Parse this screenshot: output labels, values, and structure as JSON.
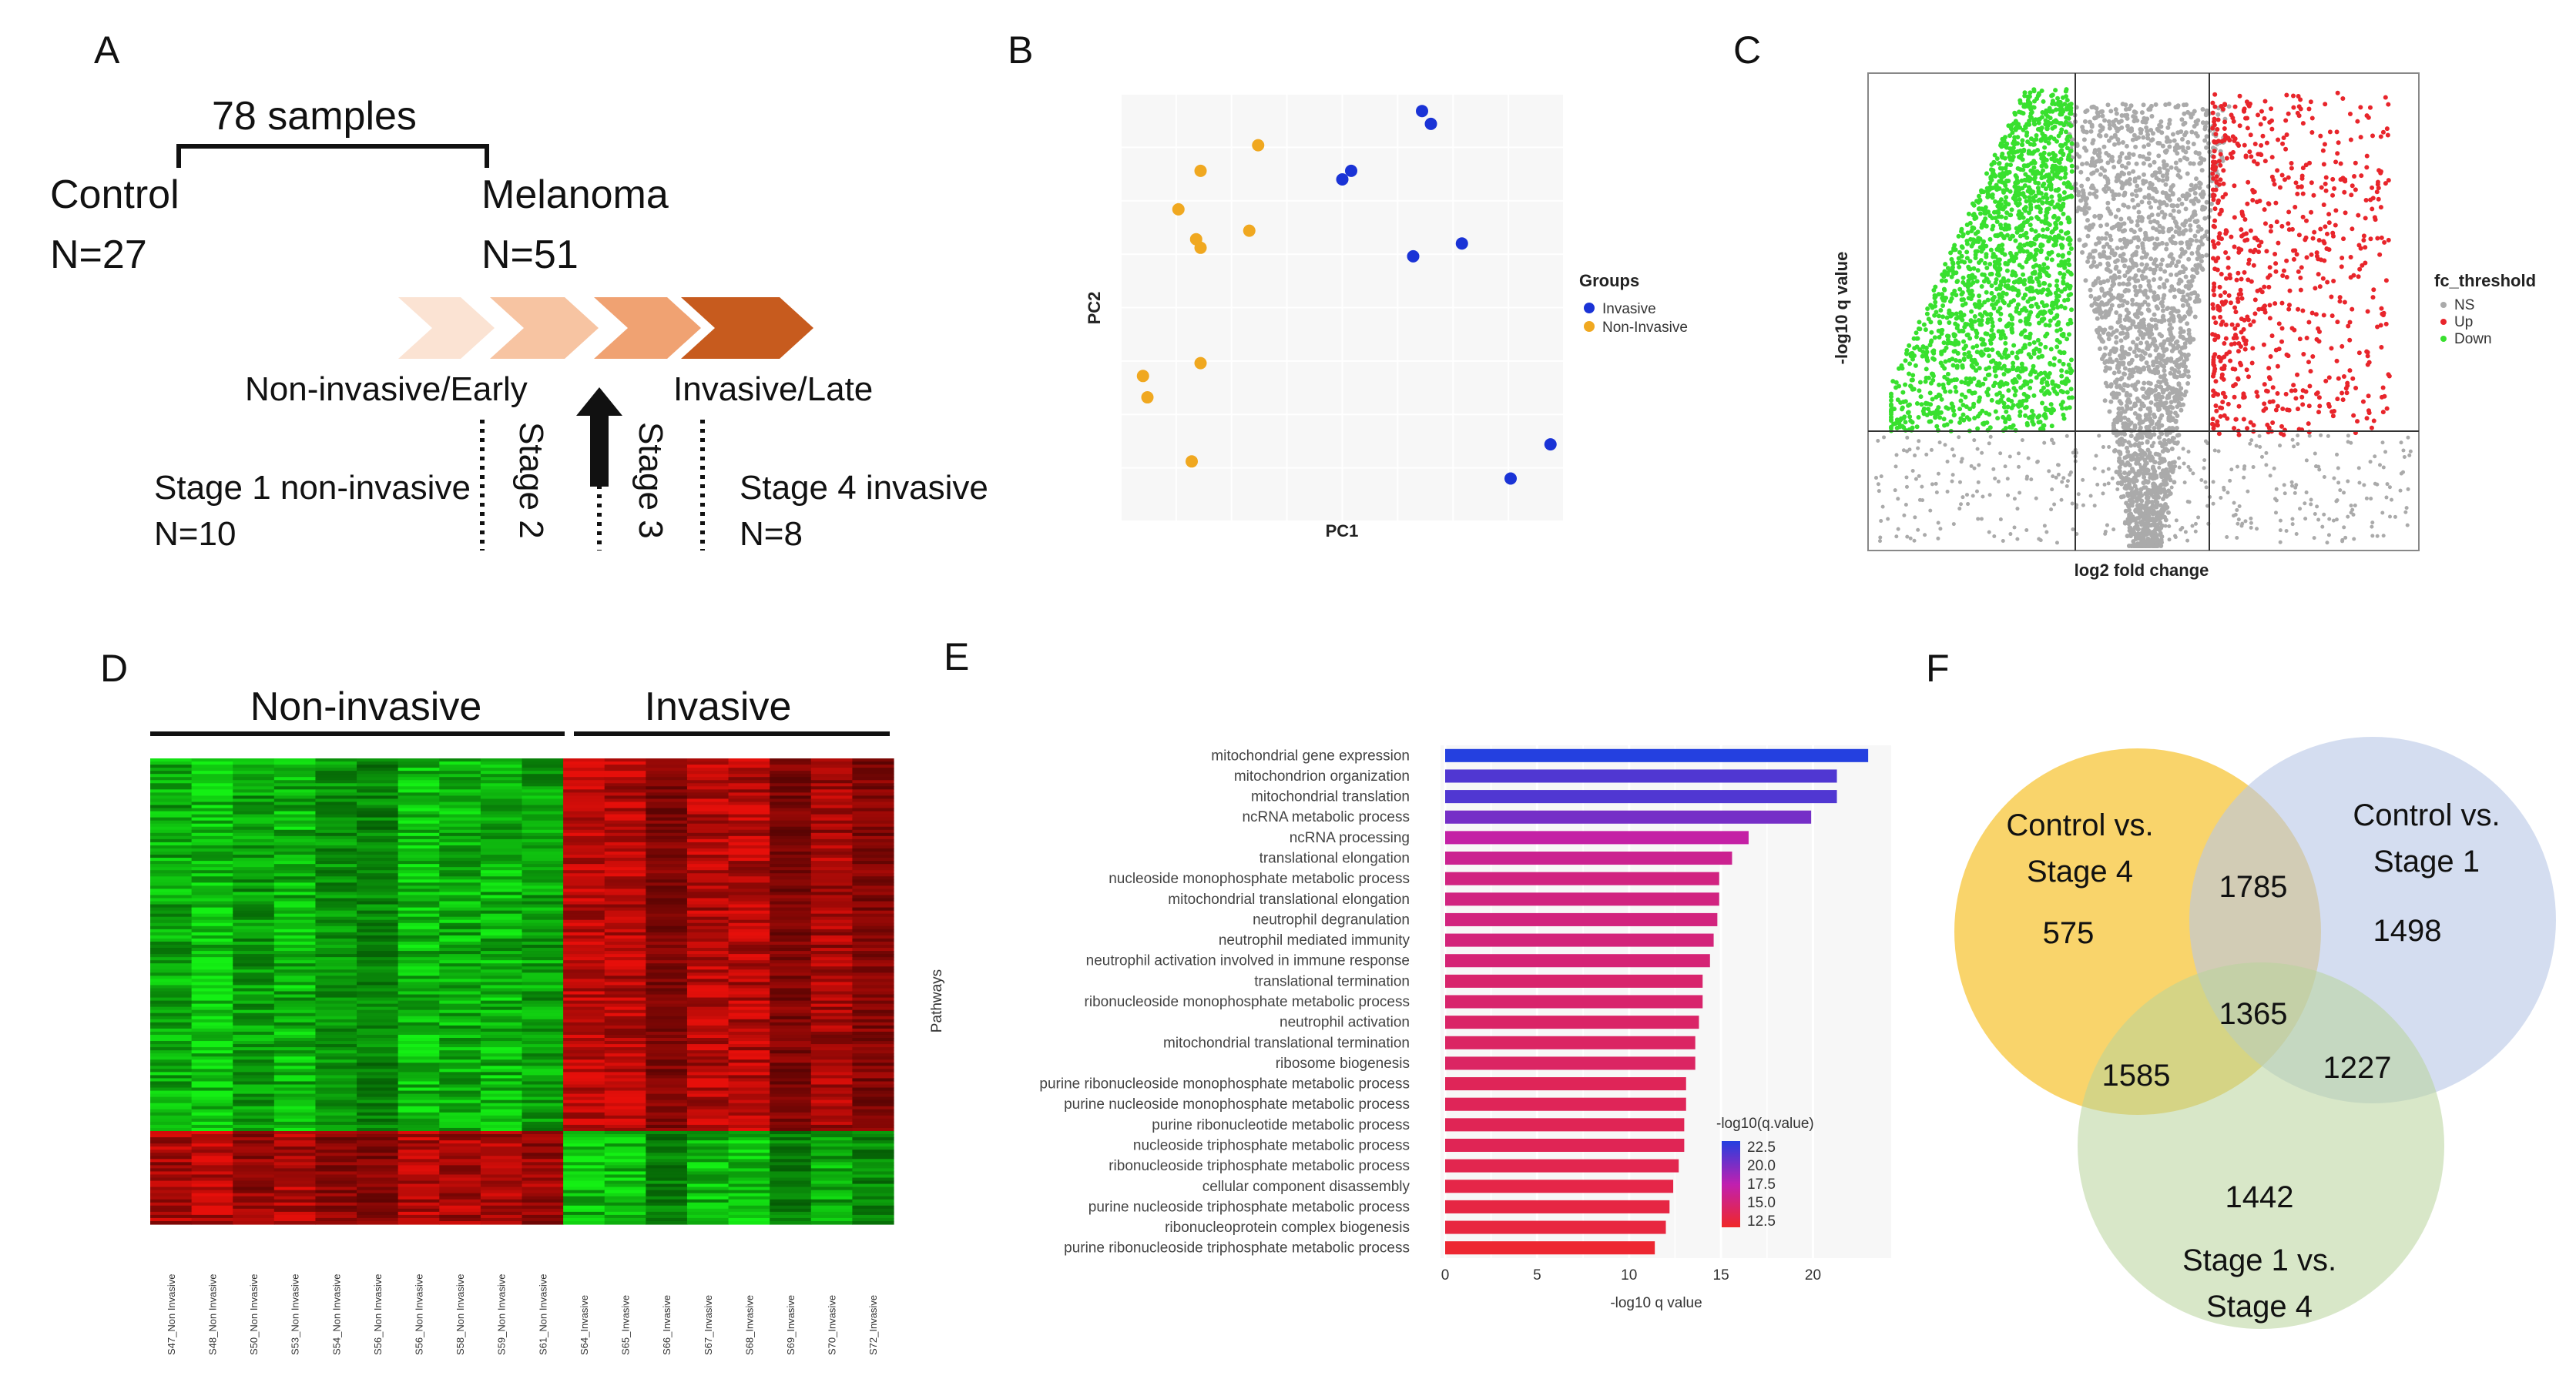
{
  "panels": {
    "a": "A",
    "b": "B",
    "c": "C",
    "d": "D",
    "e": "E",
    "f": "F"
  },
  "colors": {
    "invasive": "#1a33d6",
    "non_invasive": "#f0a820",
    "up": "#e8252b",
    "down": "#38e02e",
    "ns": "#aaaaaa"
  },
  "panel_a": {
    "samples": "78 samples",
    "control": "Control",
    "control_n": "N=27",
    "melanoma": "Melanoma",
    "melanoma_n": "N=51",
    "early": "Non-invasive/Early",
    "late": "Invasive/Late",
    "stage1": "Stage 1 non-invasive",
    "stage1_n": "N=10",
    "stage2": "Stage 2",
    "stage3": "Stage 3",
    "stage4": "Stage 4 invasive",
    "stage4_n": "N=8"
  },
  "chart_data": [
    {
      "type": "scatter",
      "id": "pca",
      "xlabel": "PC1",
      "ylabel": "PC2",
      "legend_title": "Groups",
      "series": [
        {
          "name": "Invasive",
          "points": [
            [
              0.68,
              0.96
            ],
            [
              0.7,
              0.93
            ],
            [
              0.5,
              0.8
            ],
            [
              0.52,
              0.82
            ],
            [
              0.66,
              0.62
            ],
            [
              0.77,
              0.65
            ],
            [
              0.97,
              0.18
            ],
            [
              0.88,
              0.1
            ]
          ]
        },
        {
          "name": "Non-Invasive",
          "points": [
            [
              0.31,
              0.88
            ],
            [
              0.18,
              0.82
            ],
            [
              0.13,
              0.73
            ],
            [
              0.17,
              0.66
            ],
            [
              0.18,
              0.64
            ],
            [
              0.29,
              0.68
            ],
            [
              0.18,
              0.37
            ],
            [
              0.05,
              0.34
            ],
            [
              0.06,
              0.29
            ],
            [
              0.16,
              0.14
            ]
          ]
        }
      ]
    },
    {
      "type": "scatter",
      "id": "volcano",
      "xlabel": "log2 fold change",
      "ylabel": "-log10 q value",
      "legend_title": "fc_threshold",
      "legend": [
        "NS",
        "Up",
        "Down"
      ]
    },
    {
      "type": "heatmap",
      "id": "heatmap",
      "group_labels": [
        "Non-invasive",
        "Invasive"
      ],
      "samples": [
        "S47_Non Invasive",
        "S48_Non Invasive",
        "S50_Non Invasive",
        "S53_Non Invasive",
        "S54_Non Invasive",
        "S56_Non Invasive",
        "S56_Non Invasive",
        "S58_Non Invasive",
        "S59_Non Invasive",
        "S61_Non Invasive",
        "S64_Invasive",
        "S65_Invasive",
        "S66_Invasive",
        "S67_Invasive",
        "S68_Invasive",
        "S69_Invasive",
        "S70_Invasive",
        "S72_Invasive"
      ]
    },
    {
      "type": "bar",
      "id": "pathways",
      "ylabel": "Pathways",
      "xlabel": "-log10 q value",
      "xlim": [
        0,
        24
      ],
      "xticks": [
        0,
        5,
        10,
        15,
        20
      ],
      "legend_title": "-log10(q.value)",
      "legend_ticks": [
        "22.5",
        "20.0",
        "17.5",
        "15.0",
        "12.5"
      ],
      "categories": [
        "mitochondrial gene expression",
        "mitochondrion organization",
        "mitochondrial translation",
        "ncRNA metabolic process",
        "ncRNA processing",
        "translational elongation",
        "nucleoside monophosphate metabolic process",
        "mitochondrial translational elongation",
        "neutrophil degranulation",
        "neutrophil mediated immunity",
        "neutrophil activation involved in immune response",
        "translational termination",
        "ribonucleoside monophosphate metabolic process",
        "neutrophil activation",
        "mitochondrial translational termination",
        "ribosome biogenesis",
        "purine ribonucleoside monophosphate metabolic process",
        "purine nucleoside monophosphate metabolic process",
        "purine ribonucleotide metabolic process",
        "nucleoside triphosphate metabolic process",
        "ribonucleoside triphosphate metabolic process",
        "cellular component disassembly",
        "purine nucleoside triphosphate metabolic process",
        "ribonucleoprotein complex biogenesis",
        "purine ribonucleoside triphosphate metabolic process"
      ],
      "values": [
        23.0,
        21.3,
        21.3,
        19.9,
        16.5,
        15.6,
        14.9,
        14.9,
        14.8,
        14.6,
        14.4,
        14.0,
        14.0,
        13.8,
        13.6,
        13.6,
        13.1,
        13.1,
        13.0,
        13.0,
        12.7,
        12.4,
        12.2,
        12.0,
        11.4
      ]
    },
    {
      "type": "venn",
      "id": "venn",
      "sets": [
        "Control vs. Stage 4",
        "Control vs. Stage 1",
        "Stage 1 vs. Stage 4"
      ],
      "set_lines": [
        [
          "Control vs.",
          "Stage 4"
        ],
        [
          "Control vs.",
          "Stage 1"
        ],
        [
          "Stage 1 vs.",
          "Stage 4"
        ]
      ],
      "regions": {
        "only_a": "575",
        "only_b": "1498",
        "only_c": "1442",
        "ab": "1785",
        "ac": "1585",
        "bc": "1227",
        "abc": "1365"
      }
    }
  ]
}
